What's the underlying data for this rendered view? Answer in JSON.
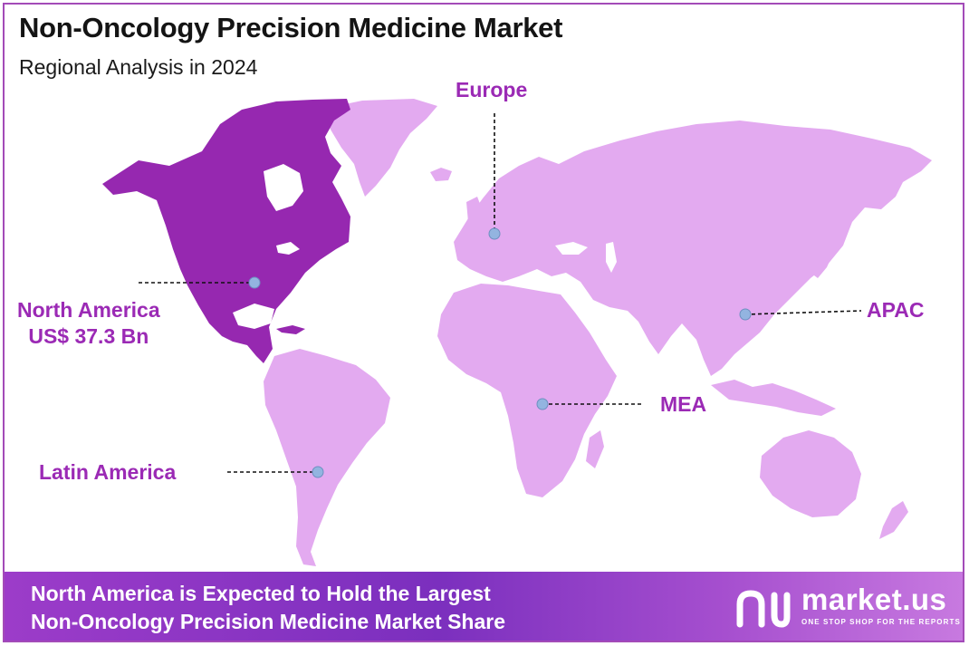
{
  "header": {
    "title": "Non-Oncology Precision Medicine Market",
    "subtitle": "Regional Analysis in 2024"
  },
  "colors": {
    "highlight_region": "#9628b0",
    "other_regions": "#e3aaf0",
    "label_text": "#9b2ab5",
    "marker": "#93b4e0"
  },
  "regions": [
    {
      "name": "North America",
      "value_label": "US$ 37.3 Bn",
      "highlighted": true
    },
    {
      "name": "Europe",
      "value_label": "",
      "highlighted": false
    },
    {
      "name": "APAC",
      "value_label": "",
      "highlighted": false
    },
    {
      "name": "MEA",
      "value_label": "",
      "highlighted": false
    },
    {
      "name": "Latin America",
      "value_label": "",
      "highlighted": false
    }
  ],
  "footer": {
    "line1": "North America is Expected to Hold the Largest",
    "line2": "Non-Oncology Precision Medicine Market Share"
  },
  "brand": {
    "name": "market.us",
    "tagline": "ONE STOP SHOP FOR THE REPORTS"
  }
}
